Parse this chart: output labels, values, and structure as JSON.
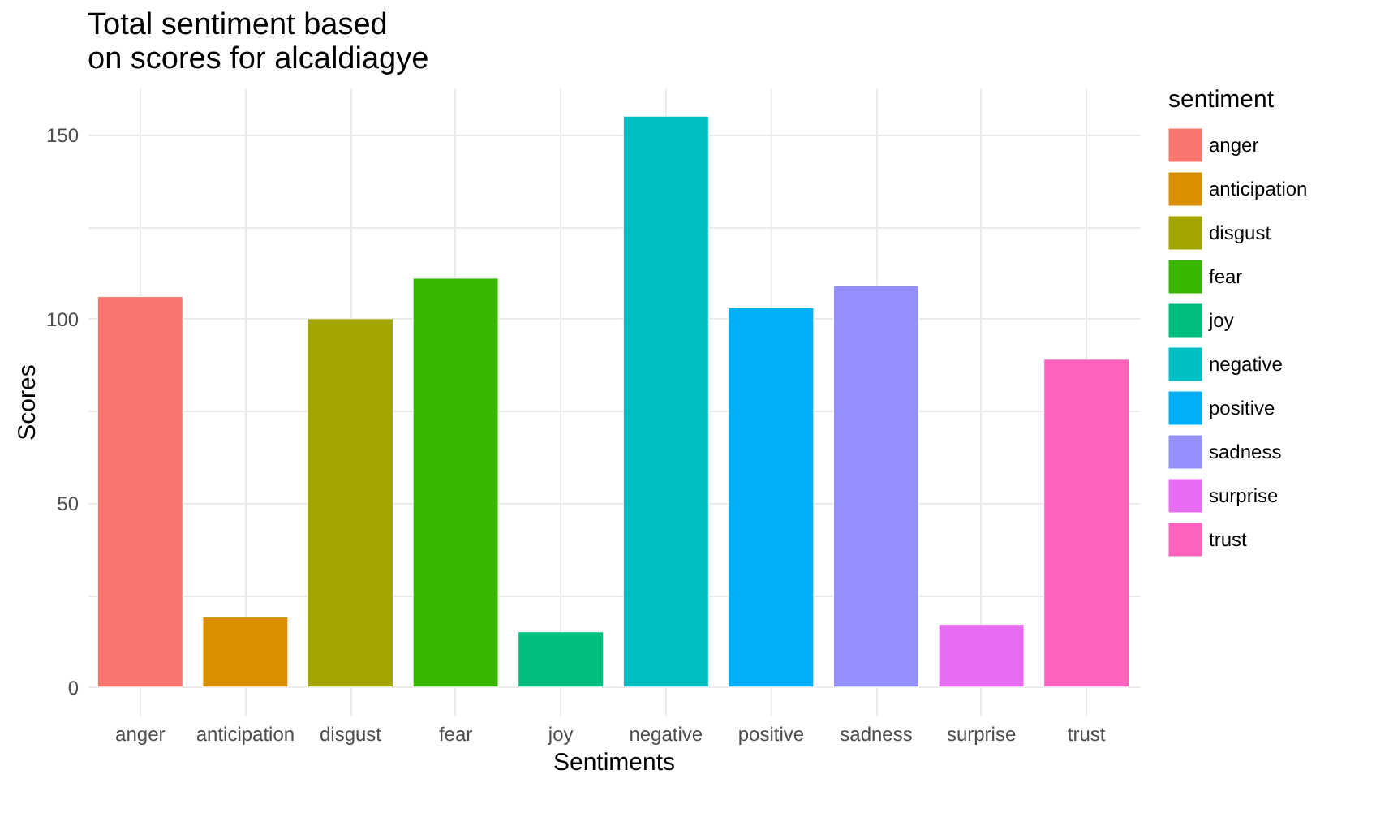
{
  "chart_data": {
    "type": "bar",
    "title": "Total sentiment based\non scores for alcaldiagye",
    "xlabel": "Sentiments",
    "ylabel": "Scores",
    "legend_title": "sentiment",
    "categories": [
      "anger",
      "anticipation",
      "disgust",
      "fear",
      "joy",
      "negative",
      "positive",
      "sadness",
      "surprise",
      "trust"
    ],
    "series": [
      {
        "name": "anger",
        "color": "#f8766d",
        "values": [
          106,
          null,
          null,
          null,
          null,
          null,
          null,
          null,
          null,
          null
        ]
      },
      {
        "name": "anticipation",
        "color": "#d89000",
        "values": [
          null,
          19,
          null,
          null,
          null,
          null,
          null,
          null,
          null,
          null
        ]
      },
      {
        "name": "disgust",
        "color": "#a3a500",
        "values": [
          null,
          null,
          100,
          null,
          null,
          null,
          null,
          null,
          null,
          null
        ]
      },
      {
        "name": "fear",
        "color": "#39b600",
        "values": [
          null,
          null,
          null,
          111,
          null,
          null,
          null,
          null,
          null,
          null
        ]
      },
      {
        "name": "joy",
        "color": "#00bf7d",
        "values": [
          null,
          null,
          null,
          null,
          15,
          null,
          null,
          null,
          null,
          null
        ]
      },
      {
        "name": "negative",
        "color": "#00bfc4",
        "values": [
          null,
          null,
          null,
          null,
          null,
          155,
          null,
          null,
          null,
          null
        ]
      },
      {
        "name": "positive",
        "color": "#00b0f6",
        "values": [
          null,
          null,
          null,
          null,
          null,
          null,
          103,
          null,
          null,
          null
        ]
      },
      {
        "name": "sadness",
        "color": "#9590ff",
        "values": [
          null,
          null,
          null,
          null,
          null,
          null,
          null,
          109,
          null,
          null
        ]
      },
      {
        "name": "surprise",
        "color": "#e76bf3",
        "values": [
          null,
          null,
          null,
          null,
          null,
          null,
          null,
          null,
          17,
          null
        ]
      },
      {
        "name": "trust",
        "color": "#ff62bc",
        "values": [
          null,
          null,
          null,
          null,
          null,
          null,
          null,
          null,
          null,
          89
        ]
      }
    ],
    "ylim": [
      -7.75,
      162.75
    ],
    "yticks": [
      0,
      {
        "value": 25,
        "label": null
      },
      50,
      {
        "value": 75,
        "label": null
      },
      100,
      {
        "value": 125,
        "label": null
      },
      150
    ],
    "grid": true,
    "legend": "right"
  }
}
